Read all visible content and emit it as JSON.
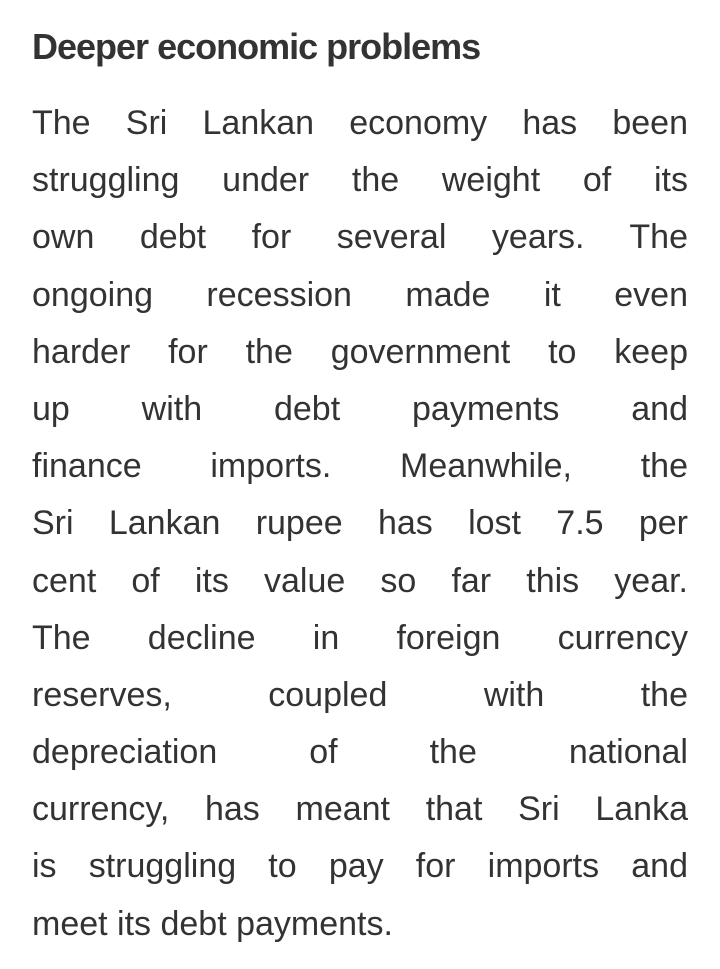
{
  "article": {
    "heading": "Deeper economic problems",
    "lines": [
      "The Sri Lankan economy has been",
      "struggling under the weight of its",
      "own debt for several years. The",
      "ongoing recession made it even",
      "harder for the government to keep",
      "up with debt payments and",
      "finance imports. Meanwhile, the",
      "Sri Lankan rupee has lost 7.5 per",
      "cent of its value so far this year.",
      "The decline in foreign currency",
      "reserves, coupled with the",
      "depreciation of the national",
      "currency, has meant that Sri Lanka",
      "is struggling to pay for imports and",
      "meet its debt payments."
    ]
  }
}
